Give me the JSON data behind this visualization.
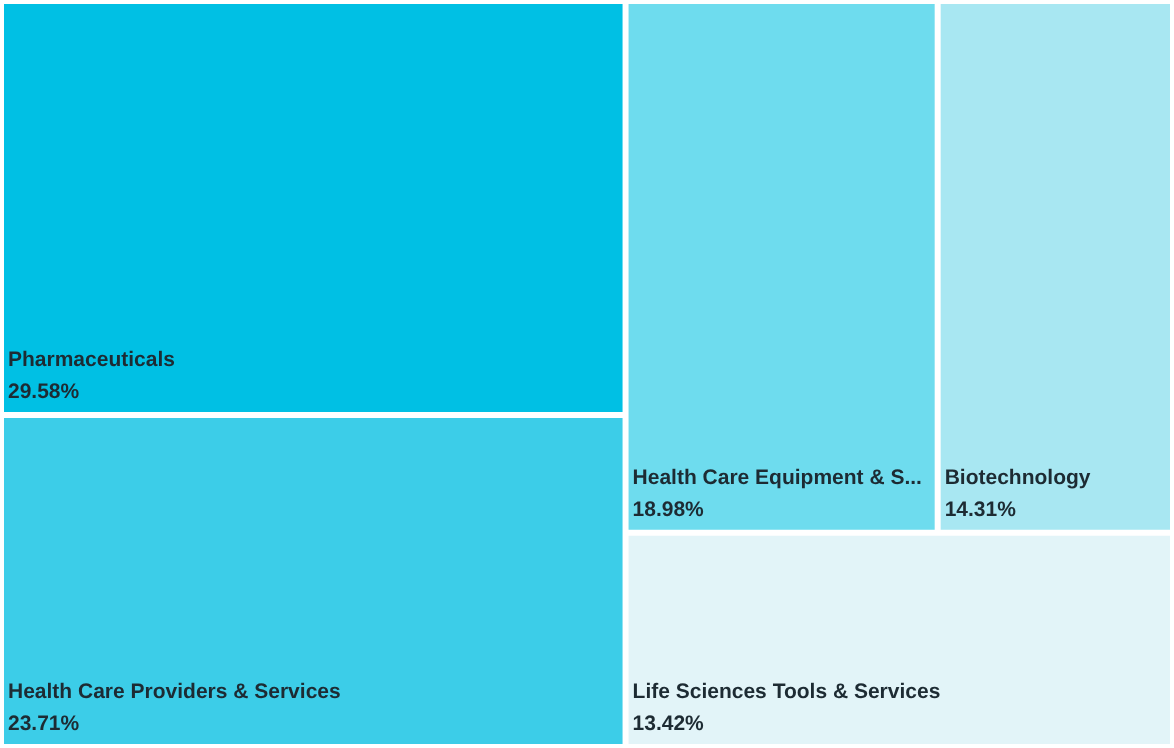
{
  "chart_data": {
    "type": "other",
    "categories": [
      "Pharmaceuticals",
      "Health Care Providers & Services",
      "Health Care Equipment & S...",
      "Biotechnology",
      "Life Sciences Tools & Services"
    ],
    "values": [
      29.58,
      23.71,
      18.98,
      14.31,
      13.42
    ],
    "value_labels": [
      "29.58%",
      "23.71%",
      "18.98%",
      "14.31%",
      "13.42%"
    ],
    "colors": [
      "#00c0e4",
      "#3ccde8",
      "#6edcee",
      "#a8e7f2",
      "#e2f4f8"
    ]
  }
}
